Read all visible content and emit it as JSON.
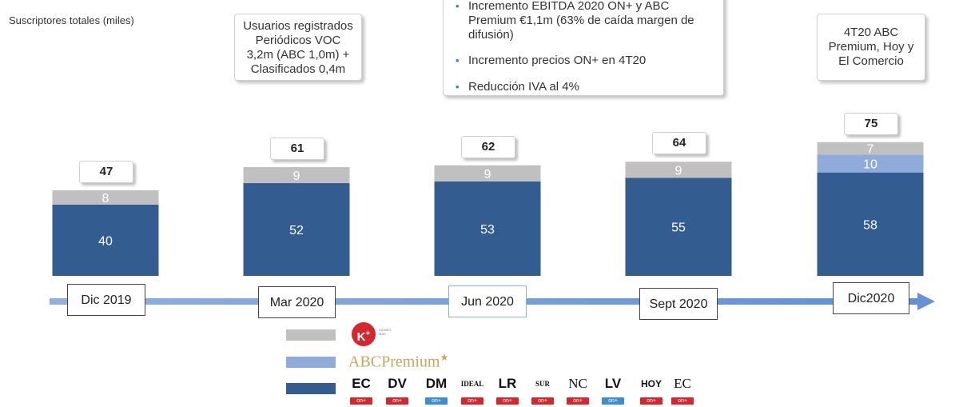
{
  "chart_data": {
    "type": "bar",
    "stacked": true,
    "categories": [
      "Dic 2019",
      "Mar 2020",
      "Jun 2020",
      "Sept 2020",
      "Dic2020"
    ],
    "series": [
      {
        "values": [
          40,
          52,
          53,
          55,
          58
        ],
        "color": "#335c91"
      },
      {
        "values": [
          0,
          0,
          0,
          0,
          10
        ],
        "color": "#8fabdc"
      },
      {
        "values": [
          8,
          9,
          9,
          9,
          7
        ],
        "color": "#c0c0c0"
      }
    ],
    "totals": [
      "47",
      "61",
      "62",
      "64",
      "75"
    ],
    "title": "",
    "ylabel": "Suscriptores totales (miles)",
    "ylim": [
      0,
      80
    ],
    "grid": false
  },
  "callouts": {
    "left": [
      "Usuarios registrados",
      "Periódicos VOC",
      "3,2m (ABC 1,0m) +",
      "Clasificados 0,4m"
    ],
    "middle": [
      "Incremento EBITDA 2020 ON+ y ABC Premium €1,1m (63% de caída margen de difusión)",
      "Incremento precios ON+ en 4T20",
      "Reducción IVA al 4%"
    ],
    "right": [
      "4T20 ABC",
      "Premium, Hoy y",
      "El Comercio"
    ]
  },
  "legend": {
    "kiosko": {
      "mark": "K",
      "sup": "+",
      "text": "KIOSKO MÁS"
    },
    "abc": {
      "text": "ABCPremium",
      "star": "★"
    },
    "papers": [
      {
        "name": "EC",
        "tag": "on+",
        "tag_color": "red"
      },
      {
        "name": "DV",
        "tag": "on+",
        "tag_color": "red"
      },
      {
        "name": "DM",
        "tag": "on+",
        "tag_color": "blue"
      },
      {
        "name": "IDEAL",
        "tag": "on+",
        "tag_color": "red"
      },
      {
        "name": "LR",
        "tag": "on+",
        "tag_color": "red"
      },
      {
        "name": "SUR",
        "tag": "on+",
        "tag_color": "red"
      },
      {
        "name": "NC",
        "tag": "on+",
        "tag_color": "red"
      },
      {
        "name": "LV",
        "tag": "on+",
        "tag_color": "blue"
      },
      {
        "name": "HOY",
        "tag": "on+",
        "tag_color": "red"
      },
      {
        "name": "EC",
        "tag": "on+",
        "tag_color": "red"
      }
    ]
  }
}
